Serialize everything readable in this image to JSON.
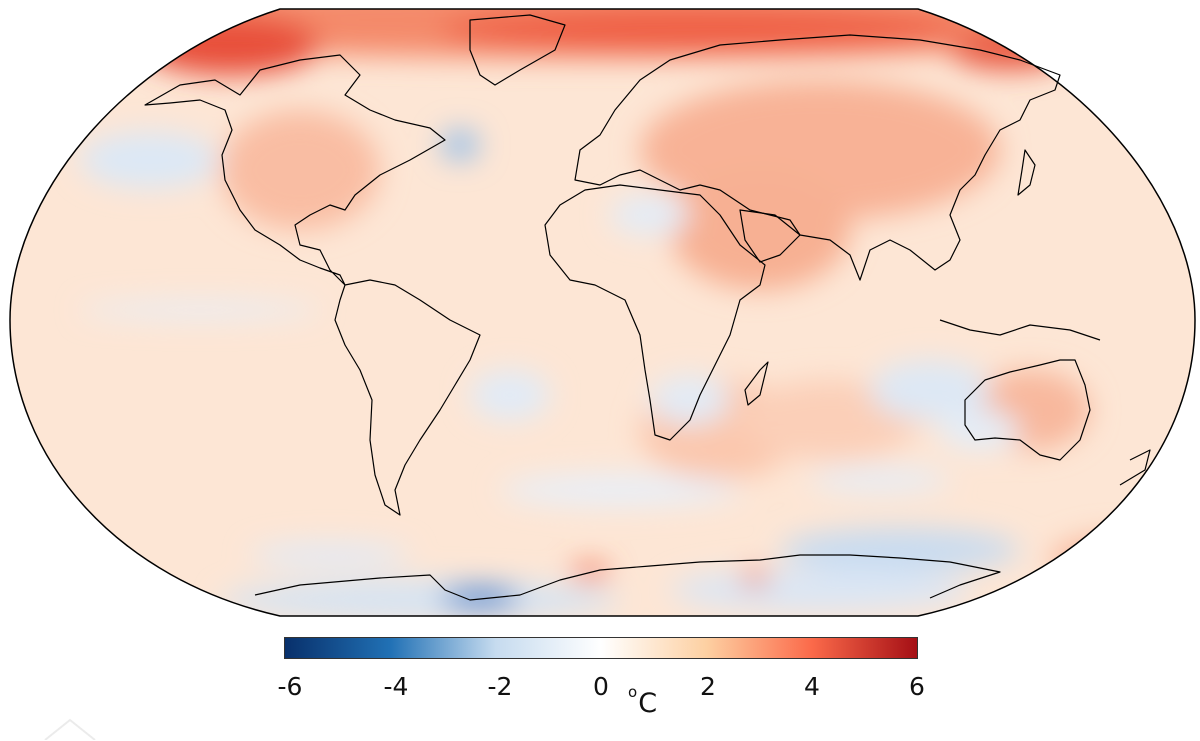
{
  "map": {
    "projection": "Robinson",
    "variable": "surface temperature anomaly",
    "coastline_color": "#000000"
  },
  "colorbar": {
    "min": -6,
    "max": 6,
    "ticks": [
      "-6",
      "-4",
      "-2",
      "0",
      "2",
      "4",
      "6"
    ],
    "unit": "C",
    "unit_prefix": "o",
    "colors": [
      "#08306b",
      "#2171b5",
      "#c6dbef",
      "#ffffff",
      "#fdd0a2",
      "#fb6a4a",
      "#a50f15"
    ]
  }
}
